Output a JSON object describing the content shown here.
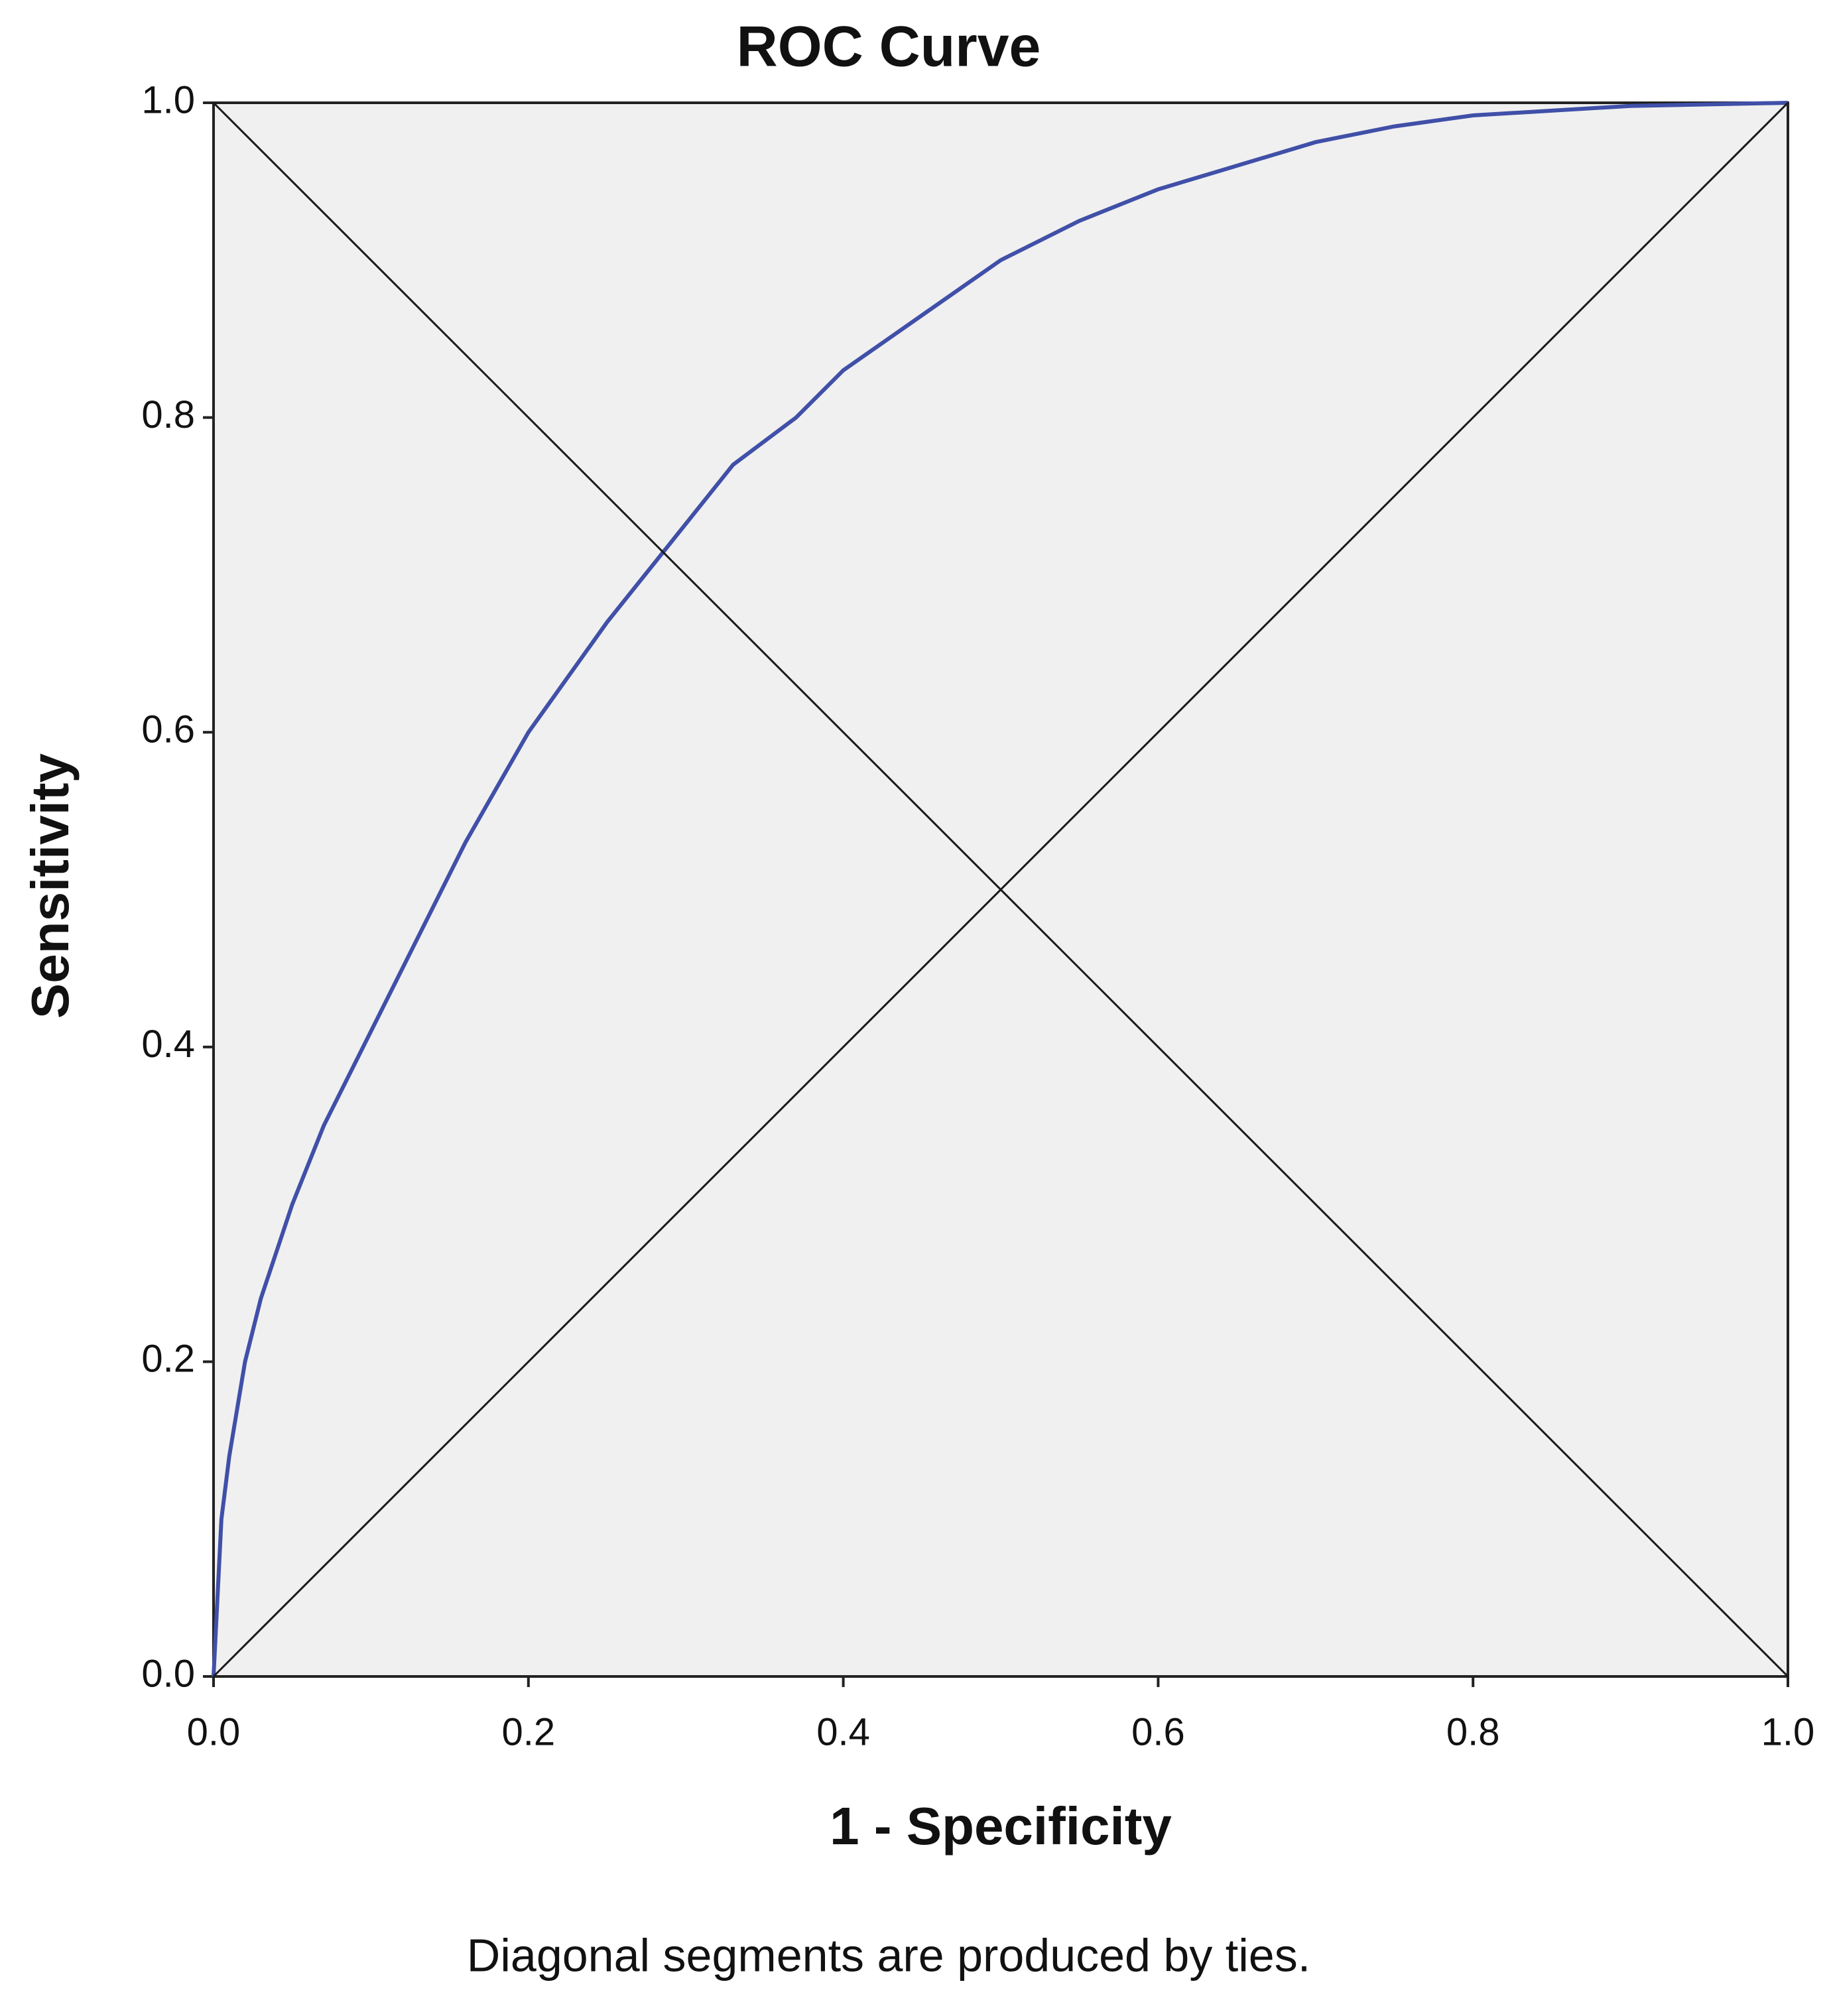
{
  "chart_data": {
    "type": "line",
    "title": "ROC Curve",
    "x_label": "1 - Specificity",
    "y_label": "Sensitivity",
    "note": "Diagonal segments are produced by ties.",
    "xlim": [
      0,
      1
    ],
    "ylim": [
      0,
      1
    ],
    "xticks": [
      {
        "value": 0,
        "label": "0.0"
      },
      {
        "value": 0.2,
        "label": "0.2"
      },
      {
        "value": 0.4,
        "label": "0.4"
      },
      {
        "value": 0.6,
        "label": "0.6"
      },
      {
        "value": 0.8,
        "label": "0.8"
      },
      {
        "value": 1,
        "label": "1.0"
      }
    ],
    "yticks": [
      {
        "value": 0,
        "label": "0.0"
      },
      {
        "value": 0.2,
        "label": "0.2"
      },
      {
        "value": 0.4,
        "label": "0.4"
      },
      {
        "value": 0.6,
        "label": "0.6"
      },
      {
        "value": 0.8,
        "label": "0.8"
      },
      {
        "value": 1,
        "label": "1.0"
      }
    ],
    "series": [
      {
        "color": "#4050a8",
        "x": [
          0,
          0.005,
          0.01,
          0.02,
          0.03,
          0.05,
          0.07,
          0.1,
          0.13,
          0.16,
          0.2,
          0.25,
          0.29,
          0.33,
          0.37,
          0.4,
          0.45,
          0.5,
          0.55,
          0.6,
          0.65,
          0.7,
          0.75,
          0.8,
          0.9,
          1
        ],
        "values": [
          0,
          0.1,
          0.14,
          0.2,
          0.24,
          0.3,
          0.35,
          0.41,
          0.47,
          0.53,
          0.6,
          0.67,
          0.72,
          0.77,
          0.8,
          0.83,
          0.865,
          0.9,
          0.925,
          0.945,
          0.96,
          0.975,
          0.985,
          0.992,
          0.998,
          1
        ]
      },
      {
        "color": "#1a1a1a",
        "x": [
          0,
          1
        ],
        "values": [
          0,
          1
        ]
      },
      {
        "color": "#1a1a1a",
        "x": [
          0,
          1
        ],
        "values": [
          1,
          0
        ]
      }
    ]
  }
}
